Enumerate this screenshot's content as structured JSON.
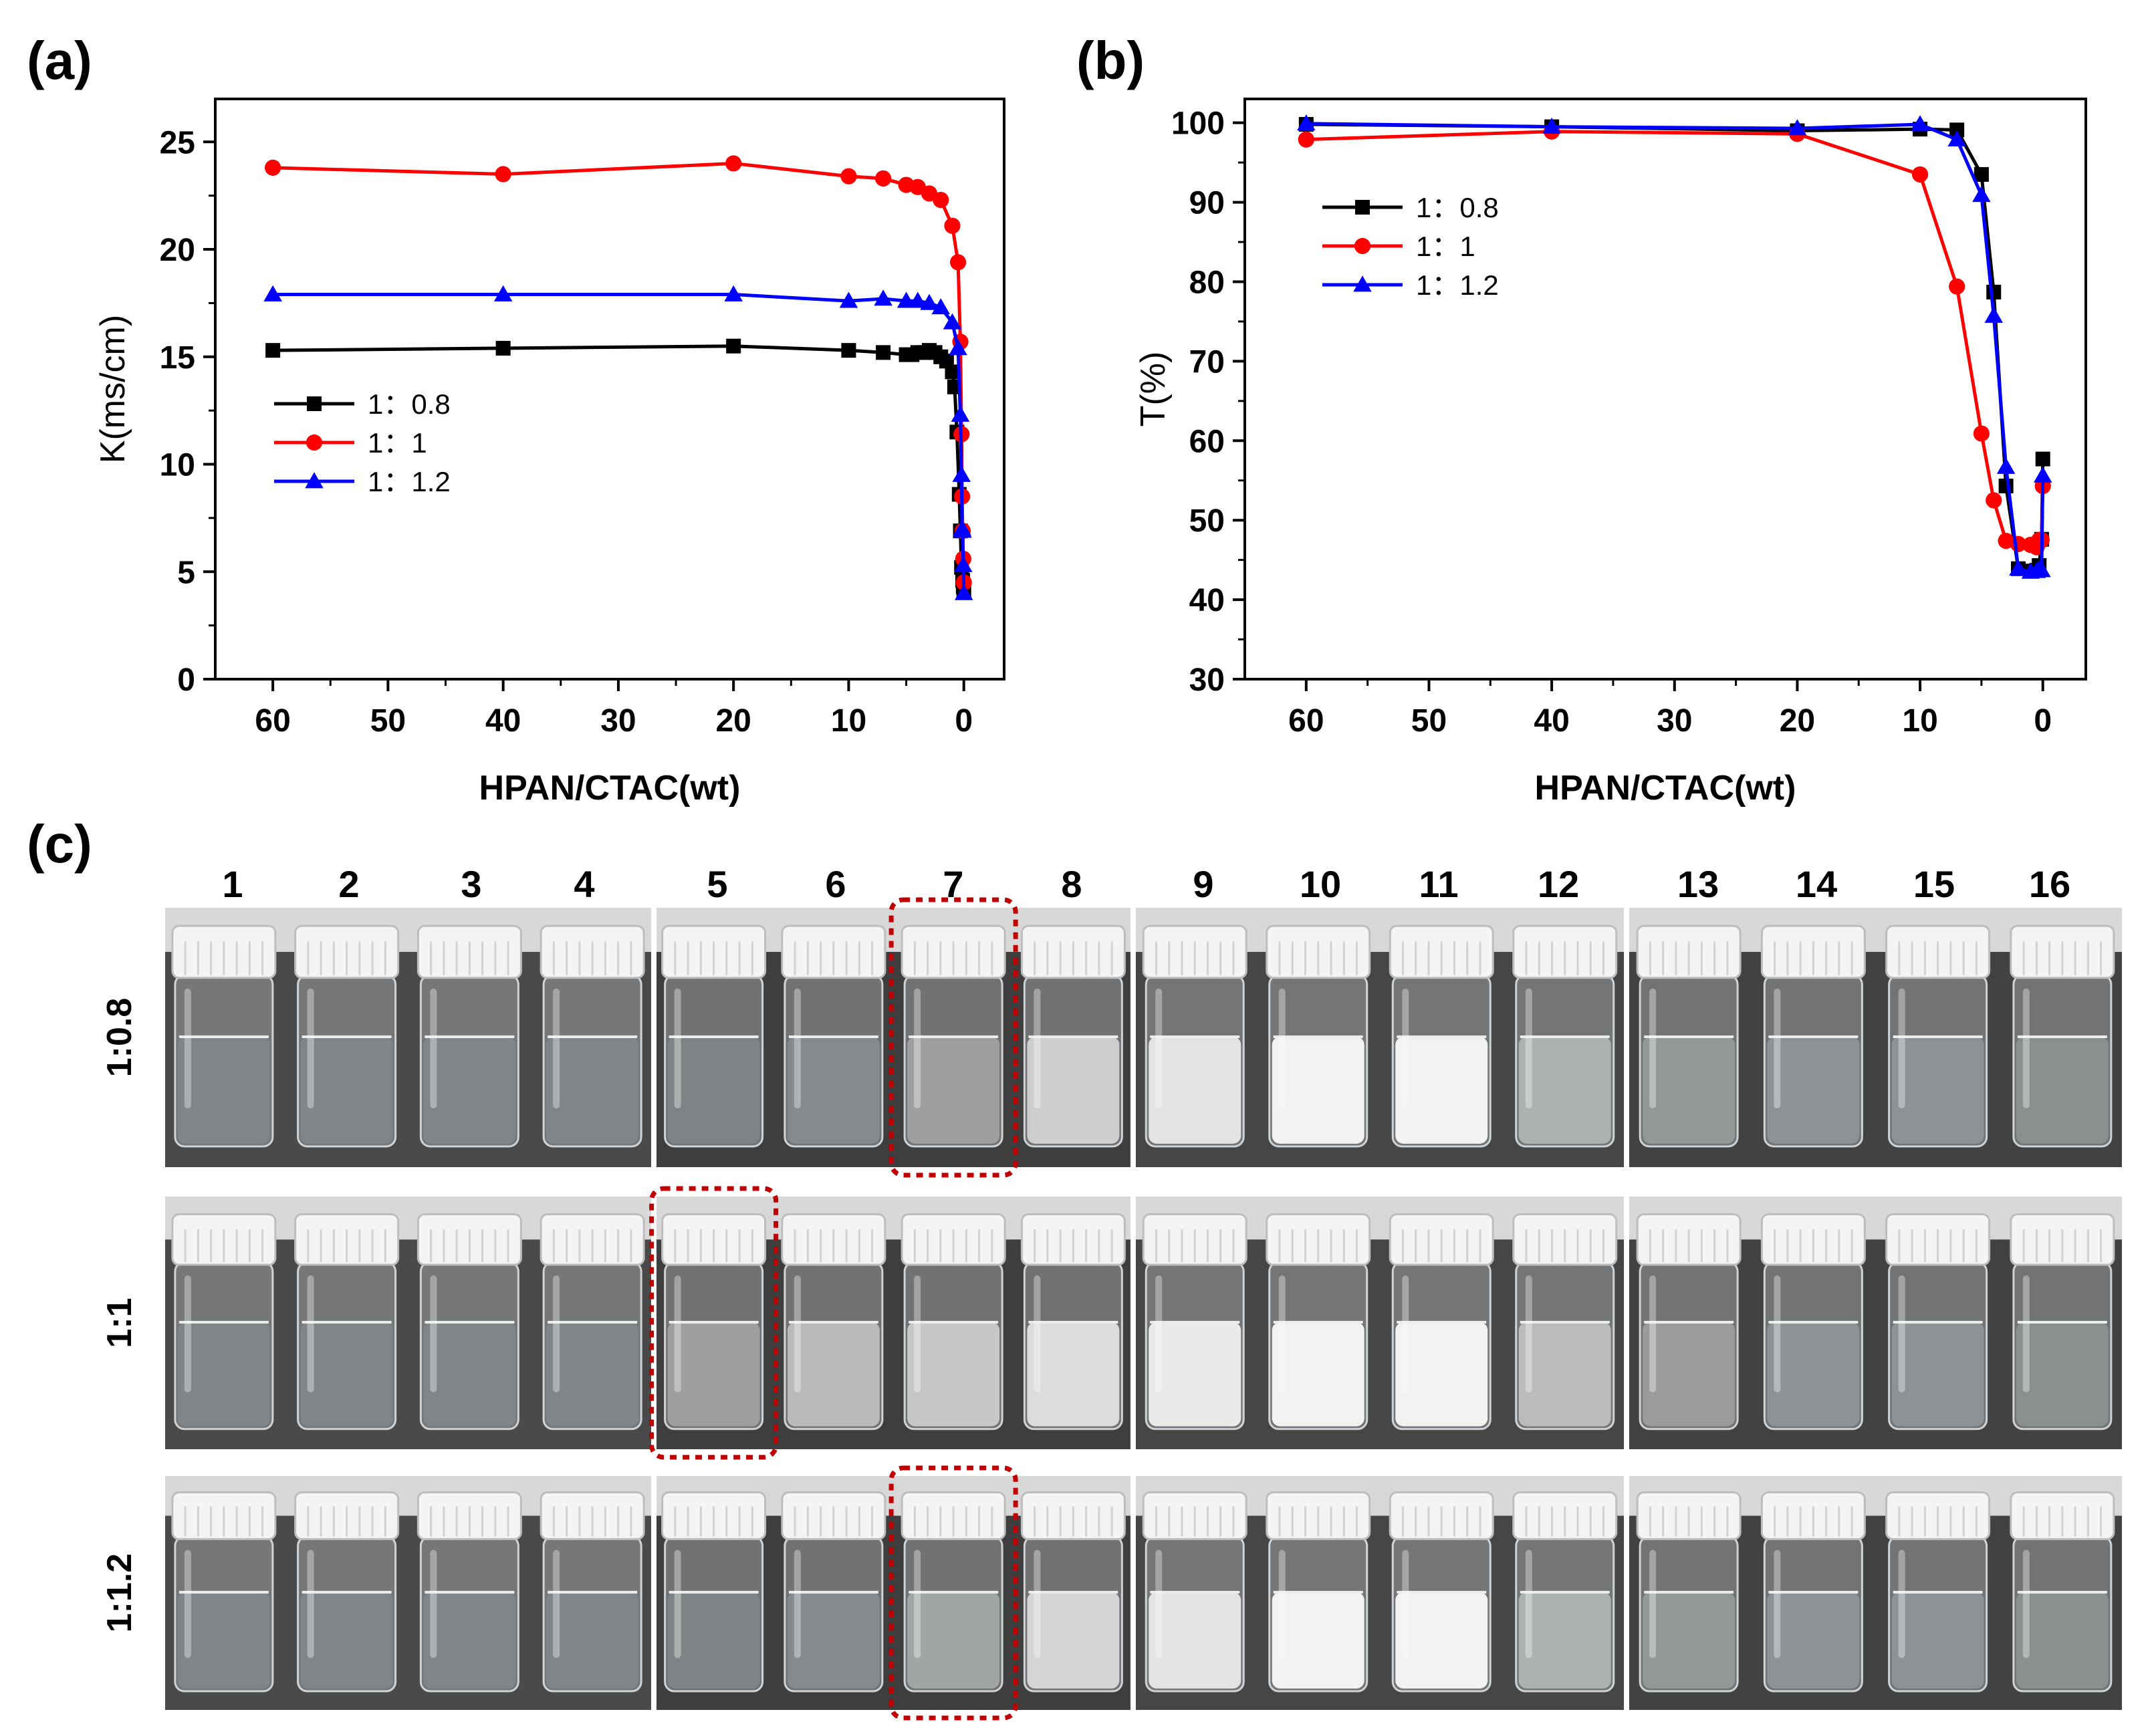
{
  "panels": {
    "a": "(a)",
    "b": "(b)",
    "c": "(c)"
  },
  "colors": {
    "black_series": "#000000",
    "red_series": "#ff0000",
    "blue_series": "#0000ff",
    "highlight_box": "#c00000",
    "photo_background": "#3d3d3d",
    "liquid_clear": "#d9dcdc",
    "liquid_milky": "#f2f2f2"
  },
  "chart_data": [
    {
      "id": "a",
      "type": "line",
      "title": "",
      "xlabel": "HPAN/CTAC(wt)",
      "ylabel": "K(ms/cm)",
      "xlim": [
        65,
        -3.5
      ],
      "ylim": [
        0,
        27
      ],
      "xticks": [
        60,
        50,
        40,
        30,
        20,
        10,
        0
      ],
      "yticks": [
        0,
        5,
        10,
        15,
        20,
        25
      ],
      "legend_position": "left",
      "series": [
        {
          "name": "1：0.8",
          "color": "#000000",
          "marker": "square",
          "x": [
            60,
            40,
            20,
            10,
            7,
            5,
            4.5,
            4,
            3.5,
            3,
            2.5,
            2,
            1.5,
            1,
            0.8,
            0.6,
            0.4,
            0.3,
            0.2,
            0.1,
            0.05,
            0
          ],
          "y": [
            15.3,
            15.4,
            15.5,
            15.3,
            15.2,
            15.1,
            15.1,
            15.2,
            15.2,
            15.3,
            15.2,
            15.0,
            14.8,
            14.3,
            13.6,
            11.5,
            8.6,
            6.9,
            5.2,
            4.6,
            4.3,
            4.1
          ]
        },
        {
          "name": "1：1",
          "color": "#ff0000",
          "marker": "circle",
          "x": [
            60,
            40,
            20,
            10,
            7,
            5,
            4,
            3,
            2,
            1,
            0.5,
            0.3,
            0.2,
            0.15,
            0.1,
            0.05,
            0
          ],
          "y": [
            23.8,
            23.5,
            24.0,
            23.4,
            23.3,
            23.0,
            22.9,
            22.6,
            22.3,
            21.1,
            19.4,
            15.7,
            11.4,
            8.5,
            6.9,
            5.6,
            4.5
          ]
        },
        {
          "name": "1：1.2",
          "color": "#0000ff",
          "marker": "triangle",
          "x": [
            60,
            40,
            20,
            10,
            7,
            5,
            4,
            3,
            2,
            1,
            0.5,
            0.3,
            0.2,
            0.15,
            0.1,
            0.05,
            0
          ],
          "y": [
            17.9,
            17.9,
            17.9,
            17.6,
            17.7,
            17.6,
            17.6,
            17.5,
            17.3,
            16.6,
            15.4,
            12.3,
            9.5,
            7.0,
            6.9,
            5.3,
            4.0
          ]
        }
      ]
    },
    {
      "id": "b",
      "type": "line",
      "title": "",
      "xlabel": "HPAN/CTAC(wt)",
      "ylabel": "T(%)",
      "xlim": [
        65,
        -3.5
      ],
      "ylim": [
        30,
        103
      ],
      "xticks": [
        60,
        50,
        40,
        30,
        20,
        10,
        0
      ],
      "yticks": [
        30,
        40,
        50,
        60,
        70,
        80,
        90,
        100
      ],
      "legend_position": "top-left",
      "series": [
        {
          "name": "1：0.8",
          "color": "#000000",
          "marker": "square",
          "x": [
            60,
            40,
            20,
            10,
            7,
            5,
            4,
            3,
            2,
            1,
            0.5,
            0.3,
            0.1,
            0
          ],
          "y": [
            99.8,
            99.5,
            99.0,
            99.2,
            99.1,
            93.5,
            78.7,
            54.3,
            43.9,
            43.6,
            43.7,
            44.3,
            47.6,
            57.7
          ]
        },
        {
          "name": "1：1",
          "color": "#ff0000",
          "marker": "circle",
          "x": [
            60,
            40,
            20,
            10,
            7,
            5,
            4,
            3,
            2,
            1,
            0.5,
            0.3,
            0.1,
            0
          ],
          "y": [
            97.9,
            98.9,
            98.6,
            93.5,
            79.4,
            60.9,
            52.5,
            47.4,
            47.0,
            46.9,
            46.6,
            47.5,
            47.5,
            54.3
          ]
        },
        {
          "name": "1：1.2",
          "color": "#0000ff",
          "marker": "triangle",
          "x": [
            60,
            40,
            20,
            10,
            7,
            5,
            4,
            3,
            2,
            1,
            0.5,
            0.3,
            0.1,
            0
          ],
          "y": [
            99.9,
            99.5,
            99.3,
            99.8,
            97.9,
            90.9,
            75.7,
            56.7,
            43.9,
            43.5,
            43.6,
            43.8,
            43.7,
            55.6
          ]
        }
      ]
    }
  ],
  "photo": {
    "column_labels": [
      "1",
      "2",
      "3",
      "4",
      "5",
      "6",
      "7",
      "8",
      "9",
      "10",
      "11",
      "12",
      "13",
      "14",
      "15",
      "16"
    ],
    "rows": [
      {
        "label": "1:0.8",
        "turbidity": [
          0,
          0,
          0,
          0,
          0,
          0.1,
          0.35,
          0.75,
          0.9,
          1.0,
          1.0,
          0.5,
          0.25,
          0.2,
          0.2,
          0.15
        ],
        "highlight_column": 7
      },
      {
        "label": "1:1",
        "turbidity": [
          0,
          0,
          0,
          0,
          0.35,
          0.6,
          0.7,
          0.85,
          0.95,
          1.0,
          1.0,
          0.6,
          0.3,
          0.2,
          0.2,
          0.15
        ],
        "highlight_column": 5
      },
      {
        "label": "1:1.2",
        "turbidity": [
          0,
          0,
          0,
          0,
          0,
          0.1,
          0.4,
          0.8,
          0.9,
          1.0,
          1.0,
          0.5,
          0.25,
          0.2,
          0.2,
          0.15
        ],
        "highlight_column": 7
      }
    ]
  }
}
